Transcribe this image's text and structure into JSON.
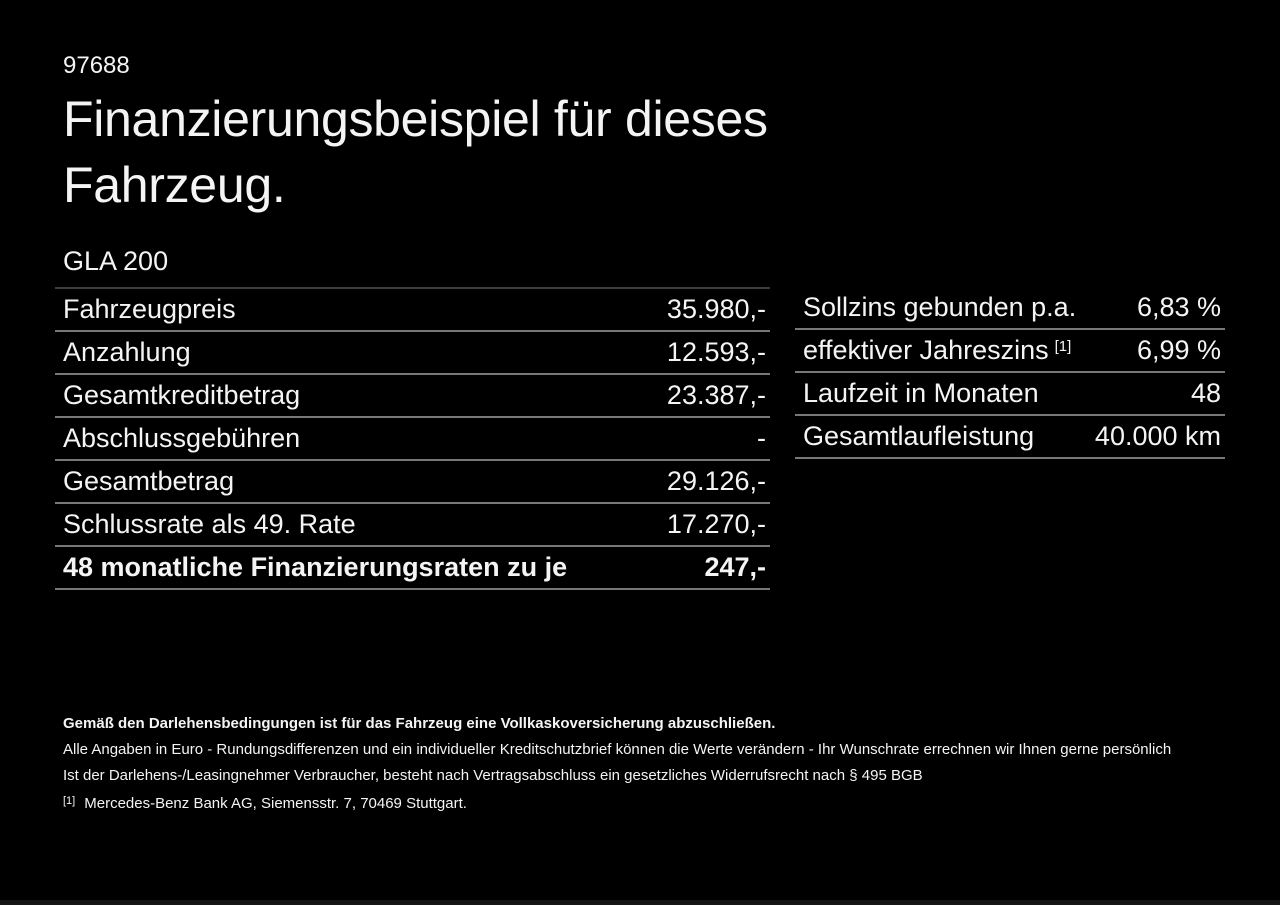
{
  "page": {
    "id_number": "97688",
    "title_line1": "Finanzierungsbeispiel für dieses",
    "title_line2": "Fahrzeug.",
    "model": "GLA 200"
  },
  "left_table": {
    "rows": [
      {
        "label": "Fahrzeugpreis",
        "value": "35.980,-"
      },
      {
        "label": "Anzahlung",
        "value": "12.593,-"
      },
      {
        "label": "Gesamtkreditbetrag",
        "value": "23.387,-"
      },
      {
        "label": "Abschlussgebühren",
        "value": "-"
      },
      {
        "label": "Gesamtbetrag",
        "value": "29.126,-"
      },
      {
        "label": "Schlussrate als 49. Rate",
        "value": "17.270,-"
      },
      {
        "label": "48 monatliche Finanzierungsraten zu je",
        "value": "247,-"
      }
    ]
  },
  "right_table": {
    "rows": [
      {
        "label": "Sollzins gebunden p.a.",
        "value": "6,83 %"
      },
      {
        "label": "effektiver Jahreszins",
        "sup": "[1]",
        "value": "6,99 %"
      },
      {
        "label": "Laufzeit in Monaten",
        "value": "48"
      },
      {
        "label": "Gesamtlaufleistung",
        "value": "40.000 km"
      }
    ]
  },
  "footer": {
    "bold_note": "Gemäß den Darlehensbedingungen ist für das Fahrzeug eine Vollkaskoversicherung abzuschließen.",
    "note_line1": "Alle Angaben in Euro - Rundungsdifferenzen und ein individueller Kreditschutzbrief können die Werte verändern - Ihr Wunschrate errechnen wir Ihnen gerne persönlich",
    "note_line2": "Ist der Darlehens-/Leasingnehmer Verbraucher, besteht nach Vertragsabschluss ein gesetzliches Widerrufsrecht nach § 495 BGB",
    "footnote_marker": "[1]",
    "footnote_text": "Mercedes-Benz Bank AG, Siemensstr. 7, 70469 Stuttgart."
  },
  "colors": {
    "background": "#000000",
    "text": "#f4f4f4",
    "row_line": "#787878",
    "model_underline": "#3c3c3c"
  }
}
